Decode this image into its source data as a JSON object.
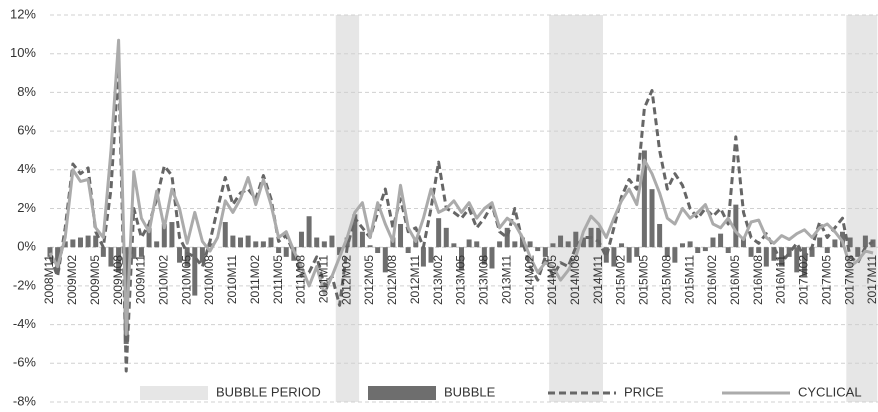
{
  "chart_data": {
    "type": "combo",
    "categories": [
      "2008M11",
      null,
      null,
      "2009M02",
      null,
      null,
      "2009M05",
      null,
      null,
      "2009M08",
      null,
      null,
      "2009M11",
      null,
      null,
      "2010M02",
      null,
      null,
      "2010M05",
      null,
      null,
      "2010M08",
      null,
      null,
      "2010M11",
      null,
      null,
      "2011M02",
      null,
      null,
      "2011M05",
      null,
      null,
      "2011M08",
      null,
      null,
      "2011M11",
      null,
      null,
      "2012M02",
      null,
      null,
      "2012M05",
      null,
      null,
      "2012M08",
      null,
      null,
      "2012M11",
      null,
      null,
      "2013M02",
      null,
      null,
      "2013M05",
      null,
      null,
      "2013M08",
      null,
      null,
      "2013M11",
      null,
      null,
      "2014M02",
      null,
      null,
      "2014M05",
      null,
      null,
      "2014M08",
      null,
      null,
      "2014M11",
      null,
      null,
      "2015M02",
      null,
      null,
      "2015M05",
      null,
      null,
      "2015M08",
      null,
      null,
      "2015M11",
      null,
      null,
      "2016M02",
      null,
      null,
      "2016M05",
      null,
      null,
      "2016M08",
      null,
      null,
      "2016M11",
      null,
      null,
      "2017M02",
      null,
      null,
      "2017M05",
      null,
      null,
      "2017M08",
      null,
      null,
      "2017M11"
    ],
    "series": [
      {
        "name": "BUBBLE PERIOD",
        "kind": "band",
        "color": "#e6e6e6",
        "values": [
          null,
          null,
          null,
          null,
          null,
          null,
          null,
          null,
          null,
          null,
          null,
          null,
          null,
          null,
          null,
          null,
          null,
          null,
          null,
          null,
          null,
          null,
          null,
          null,
          null,
          null,
          null,
          null,
          null,
          null,
          null,
          null,
          null,
          null,
          null,
          null,
          null,
          null,
          1,
          1,
          1,
          null,
          null,
          null,
          null,
          null,
          null,
          null,
          null,
          null,
          null,
          null,
          null,
          null,
          null,
          null,
          null,
          null,
          null,
          null,
          null,
          null,
          null,
          null,
          null,
          null,
          1,
          1,
          1,
          1,
          1,
          1,
          1,
          null,
          null,
          null,
          null,
          null,
          null,
          null,
          null,
          null,
          null,
          null,
          null,
          null,
          null,
          null,
          null,
          null,
          null,
          null,
          null,
          null,
          null,
          null,
          null,
          null,
          null,
          null,
          null,
          null,
          null,
          null,
          null,
          1,
          1,
          1,
          1
        ]
      },
      {
        "name": "BUBBLE",
        "kind": "bar",
        "color": "#6e6e6e",
        "values": [
          -0.5,
          -1.2,
          0.3,
          0.4,
          0.5,
          0.6,
          0.6,
          -0.5,
          -1.0,
          -1.3,
          -5.0,
          -0.6,
          -0.5,
          1.0,
          0.3,
          1.2,
          1.3,
          -0.8,
          -1.0,
          -2.5,
          -0.8,
          0.2,
          0.0,
          1.3,
          0.6,
          0.5,
          0.6,
          0.3,
          0.3,
          0.5,
          -0.3,
          -0.5,
          -0.7,
          0.8,
          1.6,
          0.5,
          0.3,
          0.6,
          -0.4,
          0.5,
          1.7,
          0.8,
          0.1,
          -0.3,
          -1.3,
          0.5,
          1.2,
          -0.3,
          0.5,
          -1.0,
          -0.8,
          1.5,
          1.0,
          0.2,
          -1.2,
          0.4,
          0.3,
          -0.9,
          -1.1,
          0.3,
          1.0,
          0.3,
          0.5,
          0.3,
          -0.2,
          -0.5,
          0.2,
          0.6,
          0.3,
          0.8,
          0.5,
          1.0,
          1.0,
          -0.8,
          -1.0,
          0.2,
          -0.8,
          -0.5,
          5.0,
          3.0,
          1.2,
          -0.5,
          -0.8,
          0.2,
          0.3,
          -0.3,
          -0.2,
          0.5,
          0.7,
          -0.3,
          2.2,
          0.5,
          -0.5,
          -0.3,
          -1.0,
          -0.7,
          -1.0,
          -0.5,
          -1.3,
          -1.5,
          -0.5,
          0.5,
          -0.3,
          0.4,
          0.8,
          0.5,
          -0.5,
          0.6,
          0.4
        ]
      },
      {
        "name": "PRICE",
        "kind": "dashed",
        "color": "#666666",
        "values": [
          -0.5,
          -1.5,
          1.0,
          4.3,
          3.8,
          4.1,
          0.8,
          0.0,
          3.0,
          9.5,
          -6.4,
          2.0,
          0.5,
          1.2,
          2.5,
          4.2,
          3.7,
          0.5,
          -0.3,
          -0.5,
          -1.0,
          0.3,
          2.0,
          3.6,
          2.2,
          2.8,
          3.0,
          2.5,
          3.7,
          2.5,
          0.3,
          0.6,
          -0.3,
          -1.5,
          -1.3,
          -0.5,
          -2.0,
          -1.5,
          -3.0,
          0.0,
          1.5,
          1.0,
          0.5,
          1.8,
          3.0,
          1.0,
          2.5,
          0.8,
          1.0,
          0.0,
          2.0,
          4.4,
          2.0,
          1.8,
          1.5,
          2.0,
          1.0,
          1.5,
          2.2,
          0.8,
          0.5,
          2.0,
          0.3,
          -1.0,
          -1.7,
          -0.5,
          -1.5,
          -0.8,
          -1.0,
          0.0,
          0.5,
          0.5,
          0.3,
          -0.5,
          1.0,
          2.6,
          3.5,
          3.0,
          7.2,
          8.1,
          5.0,
          3.0,
          3.8,
          3.2,
          2.0,
          1.5,
          2.0,
          1.6,
          2.0,
          1.2,
          5.7,
          1.8,
          0.5,
          0.2,
          0.7,
          0.0,
          -0.8,
          -0.3,
          0.2,
          -0.5,
          0.0,
          1.3,
          0.5,
          1.0,
          1.5,
          -0.5,
          -0.8,
          0.0,
          0.3
        ]
      },
      {
        "name": "CYCLICAL",
        "kind": "solid",
        "color": "#ababab",
        "values": [
          -0.3,
          -1.0,
          0.5,
          4.0,
          3.4,
          3.5,
          1.0,
          0.5,
          5.0,
          10.7,
          -4.5,
          3.9,
          1.5,
          0.8,
          2.9,
          1.0,
          3.0,
          2.0,
          0.2,
          1.8,
          0.3,
          -0.2,
          0.5,
          2.4,
          1.8,
          2.5,
          3.6,
          2.2,
          3.5,
          2.2,
          0.5,
          0.8,
          -0.2,
          -1.0,
          -2.0,
          -1.0,
          -2.4,
          -1.5,
          -0.5,
          0.5,
          1.8,
          2.3,
          0.5,
          2.3,
          1.2,
          0.3,
          3.2,
          1.0,
          0.3,
          1.5,
          3.0,
          1.8,
          2.0,
          2.4,
          1.8,
          2.3,
          1.5,
          2.0,
          2.3,
          1.0,
          1.5,
          1.2,
          0.5,
          -0.5,
          -1.3,
          -0.8,
          -1.0,
          -1.7,
          -1.2,
          -0.5,
          0.8,
          1.6,
          1.2,
          0.5,
          1.5,
          2.4,
          3.0,
          2.2,
          4.5,
          3.8,
          2.8,
          1.5,
          1.2,
          2.0,
          1.5,
          1.8,
          2.2,
          1.2,
          1.0,
          1.5,
          0.8,
          0.4,
          1.3,
          1.4,
          0.5,
          0.2,
          0.6,
          0.4,
          0.7,
          0.9,
          0.5,
          1.0,
          1.2,
          0.8,
          0.3,
          -1.0,
          -0.7,
          -0.2,
          -0.3
        ]
      }
    ],
    "ylim": [
      -8,
      12
    ],
    "yticks": [
      {
        "value": -8,
        "label": "-8%"
      },
      {
        "value": -6,
        "label": "-6%"
      },
      {
        "value": -4,
        "label": "-4%"
      },
      {
        "value": -2,
        "label": "-2%"
      },
      {
        "value": 0,
        "label": "0%"
      },
      {
        "value": 2,
        "label": "2%"
      },
      {
        "value": 4,
        "label": "4%"
      },
      {
        "value": 6,
        "label": "6%"
      },
      {
        "value": 8,
        "label": "8%"
      },
      {
        "value": 10,
        "label": "10%"
      },
      {
        "value": 12,
        "label": "12%"
      }
    ],
    "grid": true,
    "legend": "bottom"
  }
}
